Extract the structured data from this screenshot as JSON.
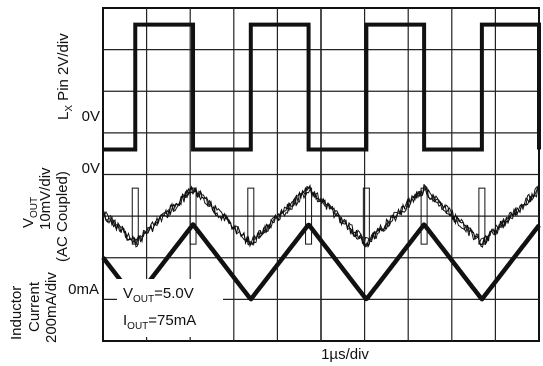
{
  "chart_data": {
    "type": "line",
    "x": {
      "label": "1µs/div",
      "divisions": 10
    },
    "y": {
      "divisions": 8
    },
    "grid": true,
    "channels": [
      {
        "name": "LX",
        "scale": "Pin 2V/div",
        "ground_label": "0V",
        "waveform": "square",
        "period_div": 2.65,
        "duty": 0.5,
        "amplitude_div": 3.0
      },
      {
        "name": "VOUT",
        "scale": "10mV/div",
        "coupling": "(AC Coupled)",
        "ground_label": "0V",
        "waveform": "ripple",
        "period_div": 2.65,
        "amplitude_div": 0.65,
        "noise": true
      },
      {
        "name": "Inductor Current",
        "scale": "200mA/div",
        "ground_label": "0mA",
        "waveform": "triangle",
        "period_div": 2.65,
        "amplitude_div": 1.8
      }
    ],
    "annotations": [
      {
        "text": "VOUT=5.0V"
      },
      {
        "text": "IOUT=75mA"
      }
    ]
  },
  "labels": {
    "lx_main": "L",
    "lx_sub": "X",
    "lx_rest": " Pin 2V/div",
    "lx_zero": "0V",
    "vout_main": "V",
    "vout_sub": "OUT",
    "vout_scale": "10mV/div",
    "vout_coupling": "(AC Coupled)",
    "vout_zero": "0V",
    "il_line1": "Inductor",
    "il_line2": "Current",
    "il_line3": "200mA/div",
    "il_zero": "0mA",
    "ann_v_main": "V",
    "ann_v_sub": "OUT",
    "ann_v_rest": "=5.0V",
    "ann_i_main": "I",
    "ann_i_sub": "OUT",
    "ann_i_rest": "=75mA",
    "xlabel": "1µs/div"
  }
}
